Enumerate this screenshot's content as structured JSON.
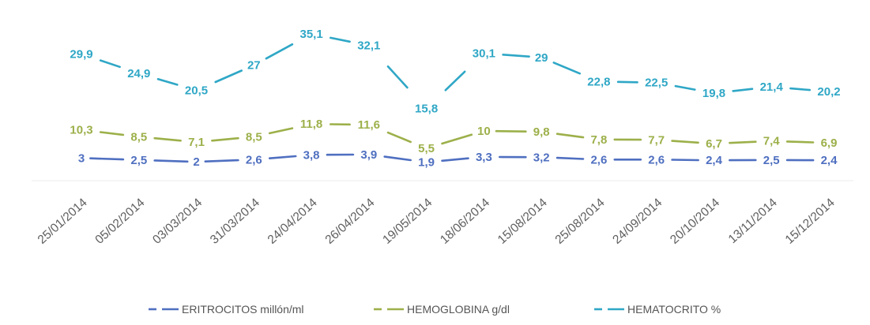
{
  "chart_data": {
    "type": "line",
    "categories": [
      "25/01/2014",
      "05/02/2014",
      "03/03/2014",
      "31/03/2014",
      "24/04/2014",
      "26/04/2014",
      "19/05/2014",
      "18/06/2014",
      "15/08/2014",
      "25/08/2014",
      "24/09/2014",
      "20/10/2014",
      "13/11/2014",
      "15/12/2014"
    ],
    "series": [
      {
        "name": "ERITROCITOS millón/ml",
        "color": "#4F6FC0",
        "values": [
          3,
          2.5,
          2,
          2.6,
          3.8,
          3.9,
          1.9,
          3.3,
          3.2,
          2.6,
          2.6,
          2.4,
          2.5,
          2.4
        ],
        "labels": [
          "3",
          "2,5",
          "2",
          "2,6",
          "3,8",
          "3,9",
          "1,9",
          "3,3",
          "3,2",
          "2,6",
          "2,6",
          "2,4",
          "2,5",
          "2,4"
        ]
      },
      {
        "name": "HEMOGLOBINA g/dl",
        "color": "#9CB04A",
        "values": [
          10.3,
          8.5,
          7.1,
          8.5,
          11.8,
          11.6,
          5.5,
          10,
          9.8,
          7.8,
          7.7,
          6.7,
          7.4,
          6.9
        ],
        "labels": [
          "10,3",
          "8,5",
          "7,1",
          "8,5",
          "11,8",
          "11,6",
          "5,5",
          "10",
          "9,8",
          "7,8",
          "7,7",
          "6,7",
          "7,4",
          "6,9"
        ]
      },
      {
        "name": "HEMATOCRITO %",
        "color": "#2FA7C6",
        "values": [
          29.9,
          24.9,
          20.5,
          27,
          35.1,
          32.1,
          15.8,
          30.1,
          29,
          22.8,
          22.5,
          19.8,
          21.4,
          20.2
        ],
        "labels": [
          "29,9",
          "24,9",
          "20,5",
          "27",
          "35,1",
          "32,1",
          "15,8",
          "30,1",
          "29",
          "22,8",
          "22,5",
          "19,8",
          "21,4",
          "20,2"
        ]
      }
    ],
    "title": "",
    "xlabel": "",
    "ylabel": "",
    "legend_position": "bottom",
    "grid": false,
    "data_labels": true
  }
}
